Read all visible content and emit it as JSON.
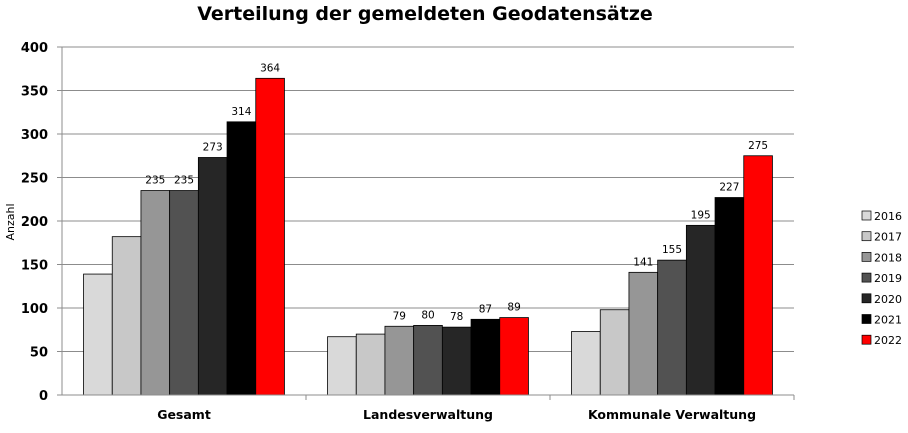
{
  "chart_data": {
    "type": "bar",
    "title": "Verteilung der gemeldeten Geodatensätze",
    "xlabel": "",
    "ylabel": "Anzahl",
    "ylim": [
      0,
      400
    ],
    "yticks": [
      "0",
      "50",
      "100",
      "150",
      "200",
      "250",
      "300",
      "350",
      "400"
    ],
    "grid": true,
    "legend_position": "right",
    "categories": [
      "Gesamt",
      "Landesverwaltung",
      "Kommunale Verwaltung"
    ],
    "series": [
      {
        "name": "2016",
        "color": "#d9d9d9",
        "values": [
          139,
          67,
          73
        ],
        "labels": [
          "",
          "",
          ""
        ]
      },
      {
        "name": "2017",
        "color": "#c8c8c8",
        "values": [
          182,
          70,
          98
        ],
        "labels": [
          "",
          "",
          ""
        ]
      },
      {
        "name": "2018",
        "color": "#969696",
        "values": [
          235,
          79,
          141
        ],
        "labels": [
          "235",
          "79",
          "141"
        ]
      },
      {
        "name": "2019",
        "color": "#525252",
        "values": [
          235,
          80,
          155
        ],
        "labels": [
          "235",
          "80",
          "155"
        ]
      },
      {
        "name": "2020",
        "color": "#262626",
        "values": [
          273,
          78,
          195
        ],
        "labels": [
          "273",
          "78",
          "195"
        ]
      },
      {
        "name": "2021",
        "color": "#000000",
        "values": [
          314,
          87,
          227
        ],
        "labels": [
          "314",
          "87",
          "227"
        ]
      },
      {
        "name": "2022",
        "color": "#ff0000",
        "values": [
          364,
          89,
          275
        ],
        "labels": [
          "364",
          "89",
          "275"
        ]
      }
    ]
  }
}
